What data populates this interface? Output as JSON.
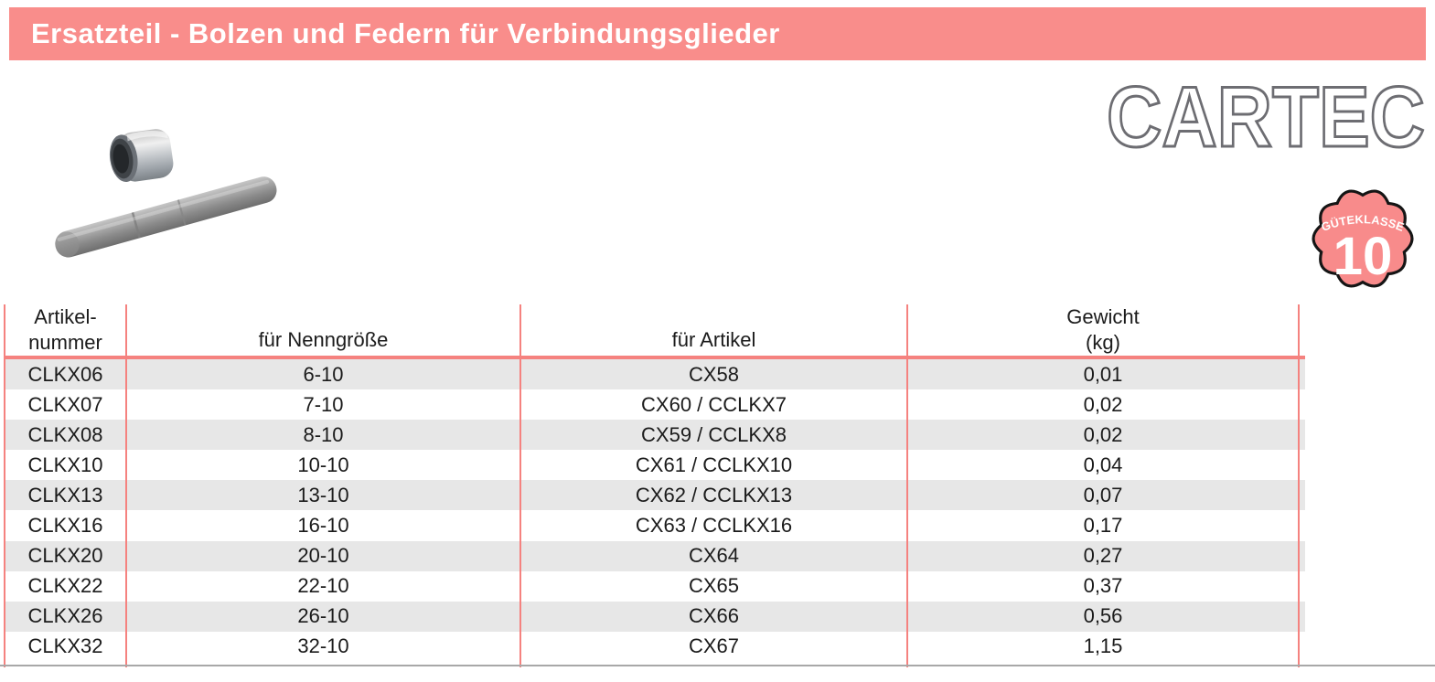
{
  "header": {
    "title": "Ersatzteil - Bolzen und Federn für Verbindungsglieder"
  },
  "brand": {
    "logo_text": "CARTEC"
  },
  "badge": {
    "line1": "GÜTEKLASSE",
    "number": "10"
  },
  "images": {
    "product_icon": "bolzen-und-huelse-photo"
  },
  "colors": {
    "accent_pink": "#f98d8b",
    "table_line_pink": "#f5827f",
    "row_stripe_gray": "#e7e7e7",
    "logo_outline_gray": "#6d6d72",
    "badge_outline": "#151515"
  },
  "table": {
    "columns": [
      {
        "label_lines": [
          "Artikel-",
          "nummer"
        ]
      },
      {
        "label_lines": [
          "für Nenngröße"
        ]
      },
      {
        "label_lines": [
          "für Artikel"
        ]
      },
      {
        "label_lines": [
          "Gewicht",
          "(kg)"
        ]
      }
    ],
    "rows": [
      [
        "CLKX06",
        "6-10",
        "CX58",
        "0,01"
      ],
      [
        "CLKX07",
        "7-10",
        "CX60 / CCLKX7",
        "0,02"
      ],
      [
        "CLKX08",
        "8-10",
        "CX59 / CCLKX8",
        "0,02"
      ],
      [
        "CLKX10",
        "10-10",
        "CX61 / CCLKX10",
        "0,04"
      ],
      [
        "CLKX13",
        "13-10",
        "CX62 / CCLKX13",
        "0,07"
      ],
      [
        "CLKX16",
        "16-10",
        "CX63 / CCLKX16",
        "0,17"
      ],
      [
        "CLKX20",
        "20-10",
        "CX64",
        "0,27"
      ],
      [
        "CLKX22",
        "22-10",
        "CX65",
        "0,37"
      ],
      [
        "CLKX26",
        "26-10",
        "CX66",
        "0,56"
      ],
      [
        "CLKX32",
        "32-10",
        "CX67",
        "1,15"
      ]
    ]
  }
}
